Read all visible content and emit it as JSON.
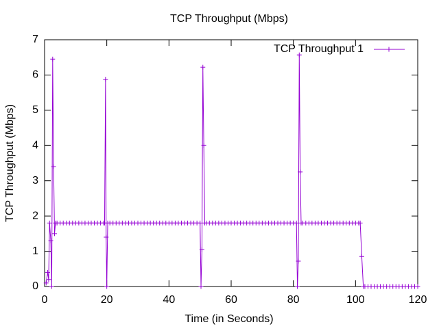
{
  "chart_data": {
    "type": "line",
    "title": "TCP Throughput (Mbps)",
    "x_label": "Time (in Seconds)",
    "y_label": "TCP Throughput (Mbps)",
    "legend_position": "top-right",
    "xlim": [
      0,
      120
    ],
    "xticks": [
      0,
      20,
      40,
      60,
      80,
      100,
      120
    ],
    "ylim": [
      0,
      7
    ],
    "yticks": [
      0,
      1,
      2,
      3,
      4,
      5,
      6,
      7
    ],
    "x": [
      0.5,
      1,
      1.3,
      1.6,
      2,
      2.3,
      2.6,
      2.9,
      3.2,
      3.5,
      4,
      5,
      6,
      7,
      8,
      9,
      10,
      11,
      12,
      13,
      14,
      15,
      16,
      17,
      18,
      19,
      19.3,
      19.6,
      19.8,
      20,
      20.3,
      21,
      22,
      23,
      24,
      25,
      26,
      27,
      28,
      29,
      30,
      31,
      32,
      33,
      34,
      35,
      36,
      37,
      38,
      39,
      40,
      41,
      42,
      43,
      44,
      45,
      46,
      47,
      48,
      49,
      50,
      50.3,
      50.6,
      50.9,
      51.2,
      51.5,
      52,
      53,
      54,
      55,
      56,
      57,
      58,
      59,
      60,
      61,
      62,
      63,
      64,
      65,
      66,
      67,
      68,
      69,
      70,
      71,
      72,
      73,
      74,
      75,
      76,
      77,
      78,
      79,
      80,
      81,
      81.3,
      81.6,
      81.9,
      82.2,
      82.5,
      83,
      84,
      85,
      86,
      87,
      88,
      89,
      90,
      91,
      92,
      93,
      94,
      95,
      96,
      97,
      98,
      99,
      100,
      101,
      101.5,
      102,
      102.5,
      103,
      104,
      105,
      106,
      107,
      108,
      109,
      110,
      111,
      112,
      113,
      114,
      115,
      116,
      117,
      118,
      119,
      120
    ],
    "series": [
      {
        "name": "TCP Throughput 1",
        "color": "#9400d3",
        "values": [
          0.1,
          0.4,
          0.2,
          1.8,
          1.3,
          0,
          6.45,
          3.4,
          1.5,
          1.8,
          1.8,
          1.8,
          1.8,
          1.8,
          1.8,
          1.8,
          1.8,
          1.8,
          1.8,
          1.8,
          1.8,
          1.8,
          1.8,
          1.8,
          1.8,
          1.8,
          1.8,
          5.88,
          1.4,
          0,
          1.8,
          1.8,
          1.8,
          1.8,
          1.8,
          1.8,
          1.8,
          1.8,
          1.8,
          1.8,
          1.8,
          1.8,
          1.8,
          1.8,
          1.8,
          1.8,
          1.8,
          1.8,
          1.8,
          1.8,
          1.8,
          1.8,
          1.8,
          1.8,
          1.8,
          1.8,
          1.8,
          1.8,
          1.8,
          1.8,
          1.8,
          0,
          1.05,
          6.22,
          4.0,
          1.8,
          1.8,
          1.8,
          1.8,
          1.8,
          1.8,
          1.8,
          1.8,
          1.8,
          1.8,
          1.8,
          1.8,
          1.8,
          1.8,
          1.8,
          1.8,
          1.8,
          1.8,
          1.8,
          1.8,
          1.8,
          1.8,
          1.8,
          1.8,
          1.8,
          1.8,
          1.8,
          1.8,
          1.8,
          1.8,
          1.8,
          0,
          0.72,
          6.57,
          3.25,
          1.8,
          1.8,
          1.8,
          1.8,
          1.8,
          1.8,
          1.8,
          1.8,
          1.8,
          1.8,
          1.8,
          1.8,
          1.8,
          1.8,
          1.8,
          1.8,
          1.8,
          1.8,
          1.8,
          1.8,
          1.8,
          0.85,
          0,
          0,
          0,
          0,
          0,
          0,
          0,
          0,
          0,
          0,
          0,
          0,
          0,
          0,
          0,
          0,
          0,
          0,
          0
        ]
      }
    ]
  }
}
